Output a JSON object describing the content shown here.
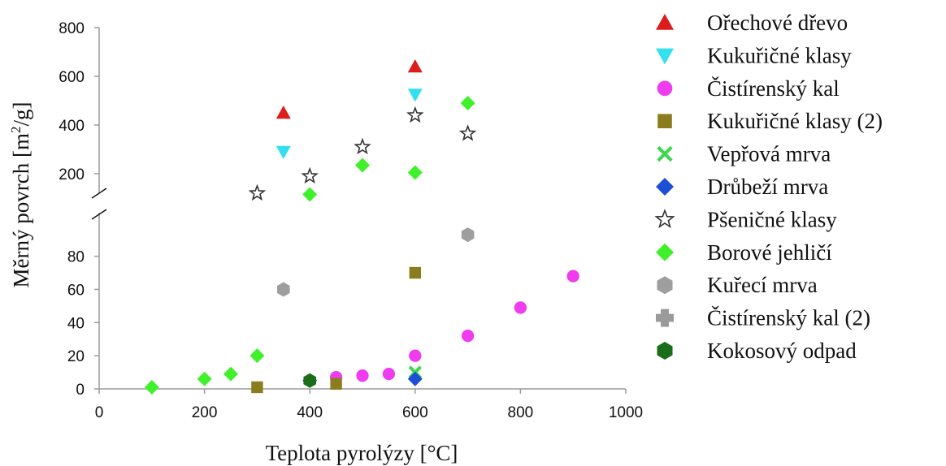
{
  "chart_data": {
    "type": "scatter",
    "xlabel": "Teplota pyrolýzy [°C]",
    "ylabel": "Měrný povrch [m²/g]",
    "xlim": [
      0,
      1000
    ],
    "x_ticks": [
      "0",
      "200",
      "400",
      "600",
      "800",
      "1000"
    ],
    "ylim_lower": [
      0,
      95
    ],
    "ylim_upper": [
      100,
      800
    ],
    "y_ticks_lower": [
      "0",
      "20",
      "40",
      "60",
      "80"
    ],
    "y_ticks_upper": [
      "200",
      "400",
      "600",
      "800"
    ],
    "axis_break": true,
    "grid": false,
    "legend_position": "right",
    "series": [
      {
        "name": "Ořechové dřevo",
        "marker": "triangle-up",
        "color": "#dd1c1c",
        "x": [
          350,
          600
        ],
        "y": [
          450,
          640
        ]
      },
      {
        "name": "Kukuřičné klasy",
        "marker": "triangle-down",
        "color": "#33e0ee",
        "x": [
          350,
          600
        ],
        "y": [
          290,
          525
        ]
      },
      {
        "name": "Čistírenský kal",
        "marker": "circle",
        "color": "#ee3cee",
        "x": [
          450,
          500,
          550,
          600,
          700,
          800,
          900
        ],
        "y": [
          7,
          8,
          9,
          20,
          32,
          49,
          68
        ]
      },
      {
        "name": "Kukuřičné klasy (2)",
        "marker": "square",
        "color": "#8a7d1e",
        "x": [
          300,
          450,
          600
        ],
        "y": [
          1,
          3,
          70
        ]
      },
      {
        "name": "Vepřová mrva",
        "marker": "x",
        "color": "#3ad84a",
        "x": [
          600
        ],
        "y": [
          10
        ]
      },
      {
        "name": "Drůbeží mrva",
        "marker": "diamond",
        "color": "#1d4fd6",
        "x": [
          400,
          600
        ],
        "y": [
          5,
          6
        ]
      },
      {
        "name": "Pšeničné klasy",
        "marker": "star",
        "color": "#333333",
        "x": [
          300,
          400,
          500,
          600,
          700
        ],
        "y": [
          120,
          190,
          310,
          440,
          365
        ]
      },
      {
        "name": "Borové jehličí",
        "marker": "diamond",
        "color": "#3ff02a",
        "x": [
          100,
          200,
          250,
          300,
          400,
          500,
          600,
          700
        ],
        "y": [
          1,
          6,
          9,
          20,
          115,
          235,
          205,
          490
        ]
      },
      {
        "name": "Kuřecí mrva",
        "marker": "hexagon",
        "color": "#9e9e9e",
        "x": [
          350,
          700
        ],
        "y": [
          60,
          93
        ]
      },
      {
        "name": "Čistírenský kal (2)",
        "marker": "plus",
        "color": "#9a9a9a",
        "x": [],
        "y": []
      },
      {
        "name": "Kokosový odpad",
        "marker": "hexagon",
        "color": "#1a6e1a",
        "x": [
          400
        ],
        "y": [
          5
        ]
      }
    ]
  }
}
